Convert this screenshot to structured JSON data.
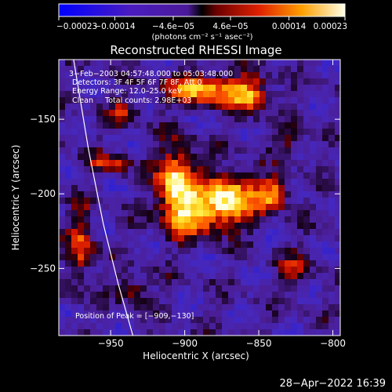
{
  "chart_data": {
    "type": "heatmap",
    "title": "Reconstructed RHESSI Image",
    "xlabel": "Heliocentric X (arcsec)",
    "ylabel": "Heliocentric Y (arcsec)",
    "xlim": [
      -985,
      -795
    ],
    "ylim": [
      -295,
      -110
    ],
    "xticks": [
      -950,
      -900,
      -850,
      -800
    ],
    "xtick_labels": [
      "−950",
      "−900",
      "−850",
      "−800"
    ],
    "yticks": [
      -150,
      -200,
      -250
    ],
    "ytick_labels": [
      "−150",
      "−200",
      "−250"
    ],
    "colorbar": {
      "range": [
        -0.00023,
        0.00023
      ],
      "ticks": [
        -0.00023,
        -0.00014,
        -4.6e-05,
        4.6e-05,
        0.00014,
        0.00023
      ],
      "tick_labels": [
        "−0.00023",
        "−0.00014",
        "−4.6e−05",
        "4.6e−05",
        "0.00014",
        "0.00023"
      ],
      "units_label": "(photons cm⁻² s⁻¹ asec⁻²)"
    },
    "annotations": [
      "3−Feb−2003 04:57:48.000 to 05:03:48.000",
      "Detectors: 3F 4F 5F 6F 7F 8F, Att 0",
      "Energy Range: 12.0–25.0 keV",
      "Clean     Total counts: 2.98E+03",
      "Position of Peak = [−909,−130]"
    ],
    "peak": {
      "x": -909,
      "y": -130
    },
    "limb_curve": [
      [
        -975,
        -110
      ],
      [
        -965,
        -170
      ],
      [
        -955,
        -220
      ],
      [
        -945,
        -260
      ],
      [
        -935,
        -295
      ]
    ],
    "sources": [
      {
        "x": -905,
        "y": -195,
        "amp": 1.0,
        "sx": 9,
        "sy": 18
      },
      {
        "x": -870,
        "y": -200,
        "amp": 0.9,
        "sx": 13,
        "sy": 10
      },
      {
        "x": -840,
        "y": -200,
        "amp": 0.75,
        "sx": 7,
        "sy": 7
      },
      {
        "x": -885,
        "y": -130,
        "amp": 0.8,
        "sx": 20,
        "sy": 7
      },
      {
        "x": -855,
        "y": -135,
        "amp": 0.6,
        "sx": 9,
        "sy": 8
      },
      {
        "x": -885,
        "y": -215,
        "amp": 0.6,
        "sx": 18,
        "sy": 9
      },
      {
        "x": -970,
        "y": -235,
        "amp": 0.55,
        "sx": 6,
        "sy": 18
      },
      {
        "x": -950,
        "y": -180,
        "amp": 0.45,
        "sx": 10,
        "sy": 5
      },
      {
        "x": -935,
        "y": -265,
        "amp": 0.45,
        "sx": 7,
        "sy": 6
      },
      {
        "x": -940,
        "y": -145,
        "amp": 0.35,
        "sx": 8,
        "sy": 6
      },
      {
        "x": -825,
        "y": -250,
        "amp": 0.35,
        "sx": 8,
        "sy": 8
      },
      {
        "x": -830,
        "y": -165,
        "amp": 0.3,
        "sx": 9,
        "sy": 7
      }
    ],
    "grid": false
  },
  "footer": {
    "timestamp": "28−Apr−2022 16:39"
  }
}
